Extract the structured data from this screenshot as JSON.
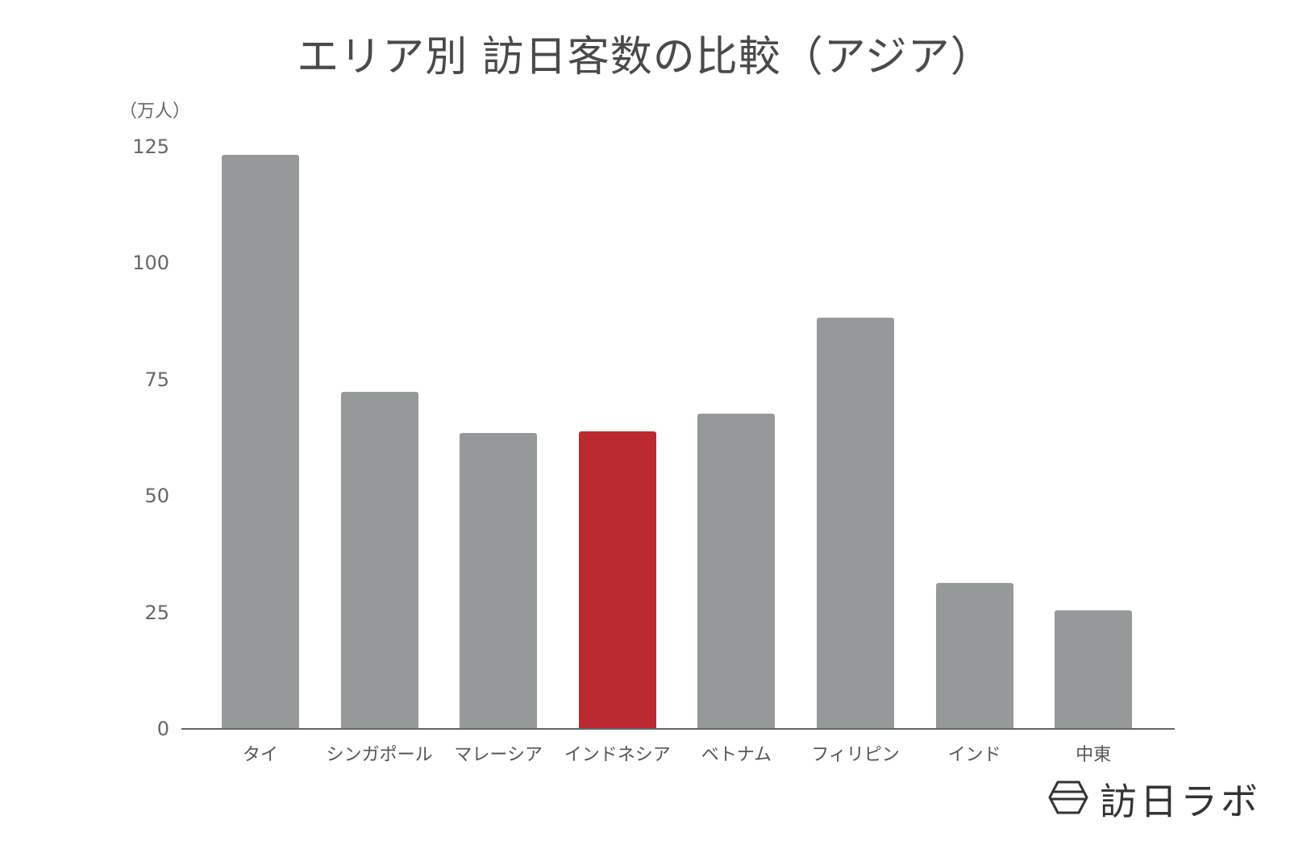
{
  "chart_data": {
    "type": "bar",
    "title": "エリア別 訪日客数の比較（アジア）",
    "xlabel": "",
    "ylabel": "（万人）",
    "ylim": [
      0,
      125
    ],
    "yticks": [
      0,
      25,
      50,
      75,
      100,
      125
    ],
    "grid": false,
    "legend": null,
    "categories": [
      "タイ",
      "シンガポール",
      "マレーシア",
      "インドネシア",
      "ベトナム",
      "フィリピン",
      "インド",
      "中東"
    ],
    "values": [
      123.3,
      72.4,
      63.5,
      63.9,
      67.7,
      88.3,
      31.3,
      25.4
    ],
    "highlight_index": 3,
    "colors": {
      "default": "#969999",
      "highlight": "#bb2a30"
    }
  },
  "branding": {
    "logo_text": "訪日ラボ",
    "logo_icon": "hexagon-logo-icon"
  }
}
